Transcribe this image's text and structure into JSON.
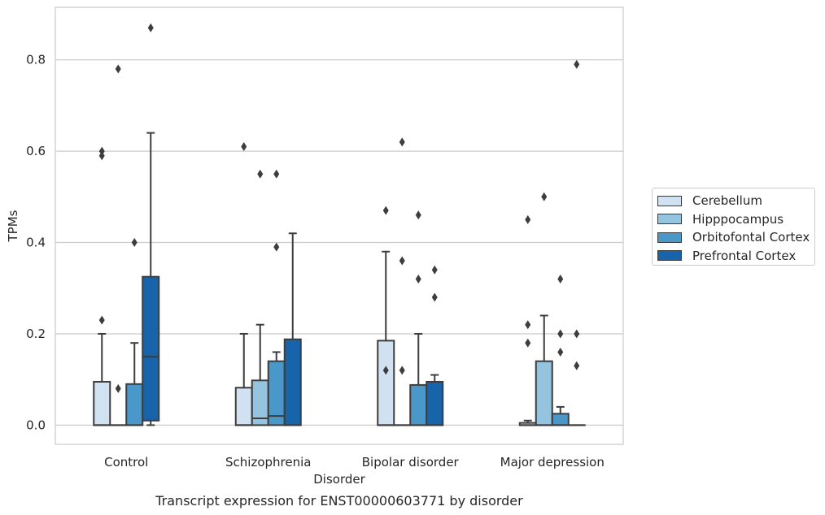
{
  "chart_data": {
    "type": "box",
    "title": "",
    "caption": "Transcript expression for ENST00000603771 by disorder",
    "xlabel": "Disorder",
    "ylabel": "TPMs",
    "ylim": [
      -0.042,
      0.915
    ],
    "yticks": [
      "0.0",
      "0.2",
      "0.4",
      "0.6",
      "0.8"
    ],
    "ytick_values": [
      0,
      0.2,
      0.4,
      0.6,
      0.8
    ],
    "grid": "horizontal",
    "legend_position": "right",
    "categories": [
      "Control",
      "Schizophrenia",
      "Bipolar disorder",
      "Major depression"
    ],
    "series": [
      {
        "name": "Cerebellum",
        "color": "#d0e1f2",
        "boxes": [
          {
            "q1": 0,
            "median": 0,
            "q3": 0.095,
            "whislo": 0,
            "whishi": 0.2,
            "fliers": [
              0.6,
              0.59,
              0.23
            ]
          },
          {
            "q1": 0,
            "median": 0,
            "q3": 0.082,
            "whislo": 0,
            "whishi": 0.2,
            "fliers": [
              0.61
            ]
          },
          {
            "q1": 0,
            "median": 0,
            "q3": 0.185,
            "whislo": 0,
            "whishi": 0.38,
            "fliers": [
              0.47,
              0.12
            ]
          },
          {
            "q1": 0,
            "median": 0,
            "q3": 0.005,
            "whislo": 0,
            "whishi": 0.01,
            "fliers": [
              0.45,
              0.22,
              0.18
            ]
          }
        ]
      },
      {
        "name": "Hipppocampus",
        "color": "#94c4df",
        "boxes": [
          {
            "q1": 0,
            "median": 0,
            "q3": 0,
            "whislo": 0,
            "whishi": 0,
            "fliers": [
              0.78,
              0.08
            ]
          },
          {
            "q1": 0,
            "median": 0.015,
            "q3": 0.098,
            "whislo": 0,
            "whishi": 0.22,
            "fliers": [
              0.55
            ]
          },
          {
            "q1": 0,
            "median": 0,
            "q3": 0,
            "whislo": 0,
            "whishi": 0,
            "fliers": [
              0.62,
              0.36,
              0.12
            ]
          },
          {
            "q1": 0,
            "median": 0,
            "q3": 0.14,
            "whislo": 0,
            "whishi": 0.24,
            "fliers": [
              0.5
            ]
          }
        ]
      },
      {
        "name": "Orbitofontal Cortex",
        "color": "#4a98c9",
        "boxes": [
          {
            "q1": 0,
            "median": 0,
            "q3": 0.09,
            "whislo": 0,
            "whishi": 0.18,
            "fliers": [
              0.4
            ]
          },
          {
            "q1": 0,
            "median": 0.02,
            "q3": 0.14,
            "whislo": 0,
            "whishi": 0.16,
            "fliers": [
              0.55,
              0.39
            ]
          },
          {
            "q1": 0,
            "median": 0,
            "q3": 0.088,
            "whislo": 0,
            "whishi": 0.2,
            "fliers": [
              0.46,
              0.32
            ]
          },
          {
            "q1": 0,
            "median": 0,
            "q3": 0.025,
            "whislo": 0,
            "whishi": 0.04,
            "fliers": [
              0.32,
              0.2,
              0.16
            ]
          }
        ]
      },
      {
        "name": "Prefrontal Cortex",
        "color": "#1764ab",
        "boxes": [
          {
            "q1": 0.01,
            "median": 0.15,
            "q3": 0.325,
            "whislo": 0,
            "whishi": 0.64,
            "fliers": [
              0.87
            ]
          },
          {
            "q1": 0,
            "median": 0,
            "q3": 0.188,
            "whislo": 0,
            "whishi": 0.42,
            "fliers": []
          },
          {
            "q1": 0,
            "median": 0,
            "q3": 0.095,
            "whislo": 0,
            "whishi": 0.11,
            "fliers": [
              0.34,
              0.28
            ]
          },
          {
            "q1": 0,
            "median": 0,
            "q3": 0,
            "whislo": 0,
            "whishi": 0,
            "fliers": [
              0.79,
              0.2,
              0.13
            ]
          }
        ]
      }
    ]
  }
}
